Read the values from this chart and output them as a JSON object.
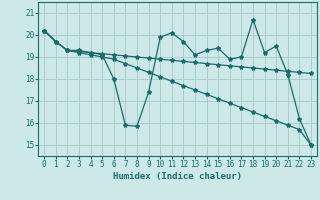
{
  "xlabel": "Humidex (Indice chaleur)",
  "background_color": "#cce8e8",
  "grid_color": "#aacccc",
  "line_color": "#1a6b6b",
  "x": [
    0,
    1,
    2,
    3,
    4,
    5,
    6,
    7,
    8,
    9,
    10,
    11,
    12,
    13,
    14,
    15,
    16,
    17,
    18,
    19,
    20,
    21,
    22,
    23
  ],
  "y_volatile": [
    20.2,
    19.7,
    19.3,
    19.3,
    19.2,
    19.1,
    18.0,
    15.9,
    15.85,
    17.4,
    19.9,
    20.1,
    19.7,
    19.1,
    19.3,
    19.4,
    18.9,
    19.0,
    20.7,
    19.2,
    19.5,
    18.2,
    16.2,
    15.0
  ],
  "y_flat": [
    20.2,
    19.7,
    19.3,
    19.25,
    19.2,
    19.15,
    19.1,
    19.05,
    19.0,
    18.95,
    18.9,
    18.85,
    18.8,
    18.75,
    18.7,
    18.65,
    18.6,
    18.55,
    18.5,
    18.45,
    18.4,
    18.35,
    18.3,
    18.25
  ],
  "y_steep": [
    20.2,
    19.7,
    19.3,
    19.2,
    19.1,
    19.0,
    18.9,
    18.7,
    18.5,
    18.3,
    18.1,
    17.9,
    17.7,
    17.5,
    17.3,
    17.1,
    16.9,
    16.7,
    16.5,
    16.3,
    16.1,
    15.9,
    15.7,
    15.0
  ],
  "ylim": [
    14.5,
    21.5
  ],
  "xlim": [
    -0.5,
    23.5
  ],
  "yticks": [
    15,
    16,
    17,
    18,
    19,
    20,
    21
  ],
  "xticks": [
    0,
    1,
    2,
    3,
    4,
    5,
    6,
    7,
    8,
    9,
    10,
    11,
    12,
    13,
    14,
    15,
    16,
    17,
    18,
    19,
    20,
    21,
    22,
    23
  ],
  "label_fontsize": 6.5,
  "tick_fontsize": 5.5
}
